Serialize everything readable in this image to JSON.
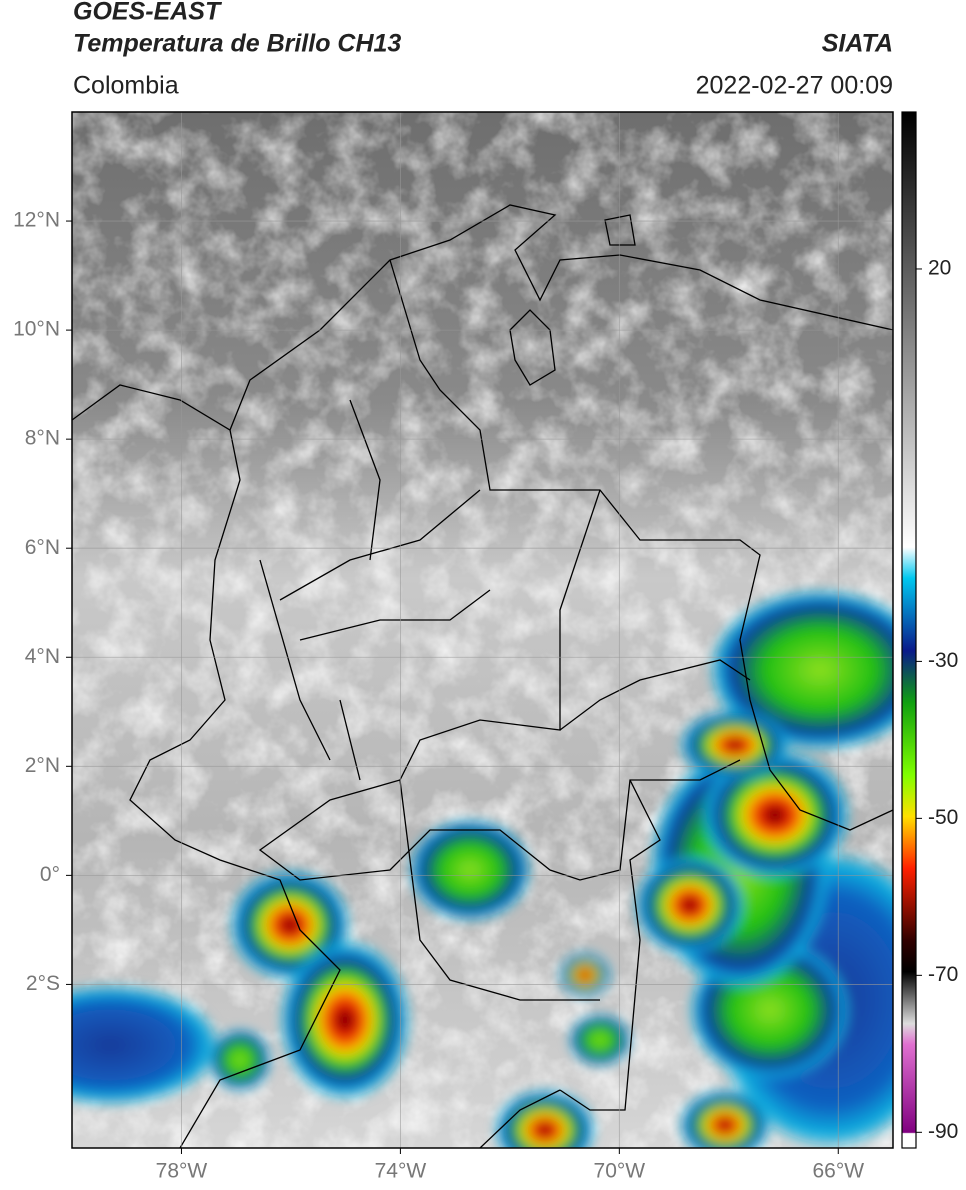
{
  "header": {
    "title": "GOES-EAST",
    "subtitle": "Temperatura de Brillo CH13",
    "region": "Colombia",
    "source": "SIATA",
    "datetime": "2022-02-27 00:09"
  },
  "map": {
    "xlim": [
      -80,
      -65
    ],
    "ylim": [
      -5,
      14
    ],
    "xticks": [
      {
        "value": -78,
        "label": "78°W"
      },
      {
        "value": -74,
        "label": "74°W"
      },
      {
        "value": -70,
        "label": "70°W"
      },
      {
        "value": -66,
        "label": "66°W"
      }
    ],
    "yticks": [
      {
        "value": -2,
        "label": "2°S"
      },
      {
        "value": 0,
        "label": "0°"
      },
      {
        "value": 2,
        "label": "2°N"
      },
      {
        "value": 4,
        "label": "4°N"
      },
      {
        "value": 6,
        "label": "6°N"
      },
      {
        "value": 8,
        "label": "8°N"
      },
      {
        "value": 10,
        "label": "10°N"
      },
      {
        "value": 12,
        "label": "12°N"
      }
    ],
    "grid": true
  },
  "colorbar": {
    "lim": [
      -92,
      40
    ],
    "ticks": [
      20,
      -30,
      -50,
      -70,
      -90
    ]
  }
}
